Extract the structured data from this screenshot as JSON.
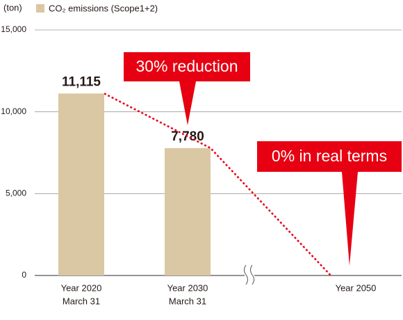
{
  "chart_data": {
    "type": "bar",
    "y_label": "(ton)",
    "categories": [
      [
        "Year 2020",
        "March 31"
      ],
      [
        "Year 2030",
        "March 31"
      ],
      [
        "Year 2050"
      ]
    ],
    "series": [
      {
        "name": "CO₂ emissions (Scope1+2)",
        "color": "#dac7a3",
        "values": [
          11115,
          7780,
          0
        ],
        "value_labels": [
          "11,115",
          "7,780",
          null
        ]
      }
    ],
    "trend_color": "#e60012",
    "annotations": [
      "30% reduction",
      "0% in real terms"
    ],
    "ylim": [
      0,
      15000
    ],
    "yticks": [
      0,
      {
        "value": 5000,
        "label": "5,000"
      },
      {
        "value": 10000,
        "label": "10,000"
      },
      {
        "value": 15000,
        "label": "15,000"
      }
    ],
    "grid": true
  }
}
